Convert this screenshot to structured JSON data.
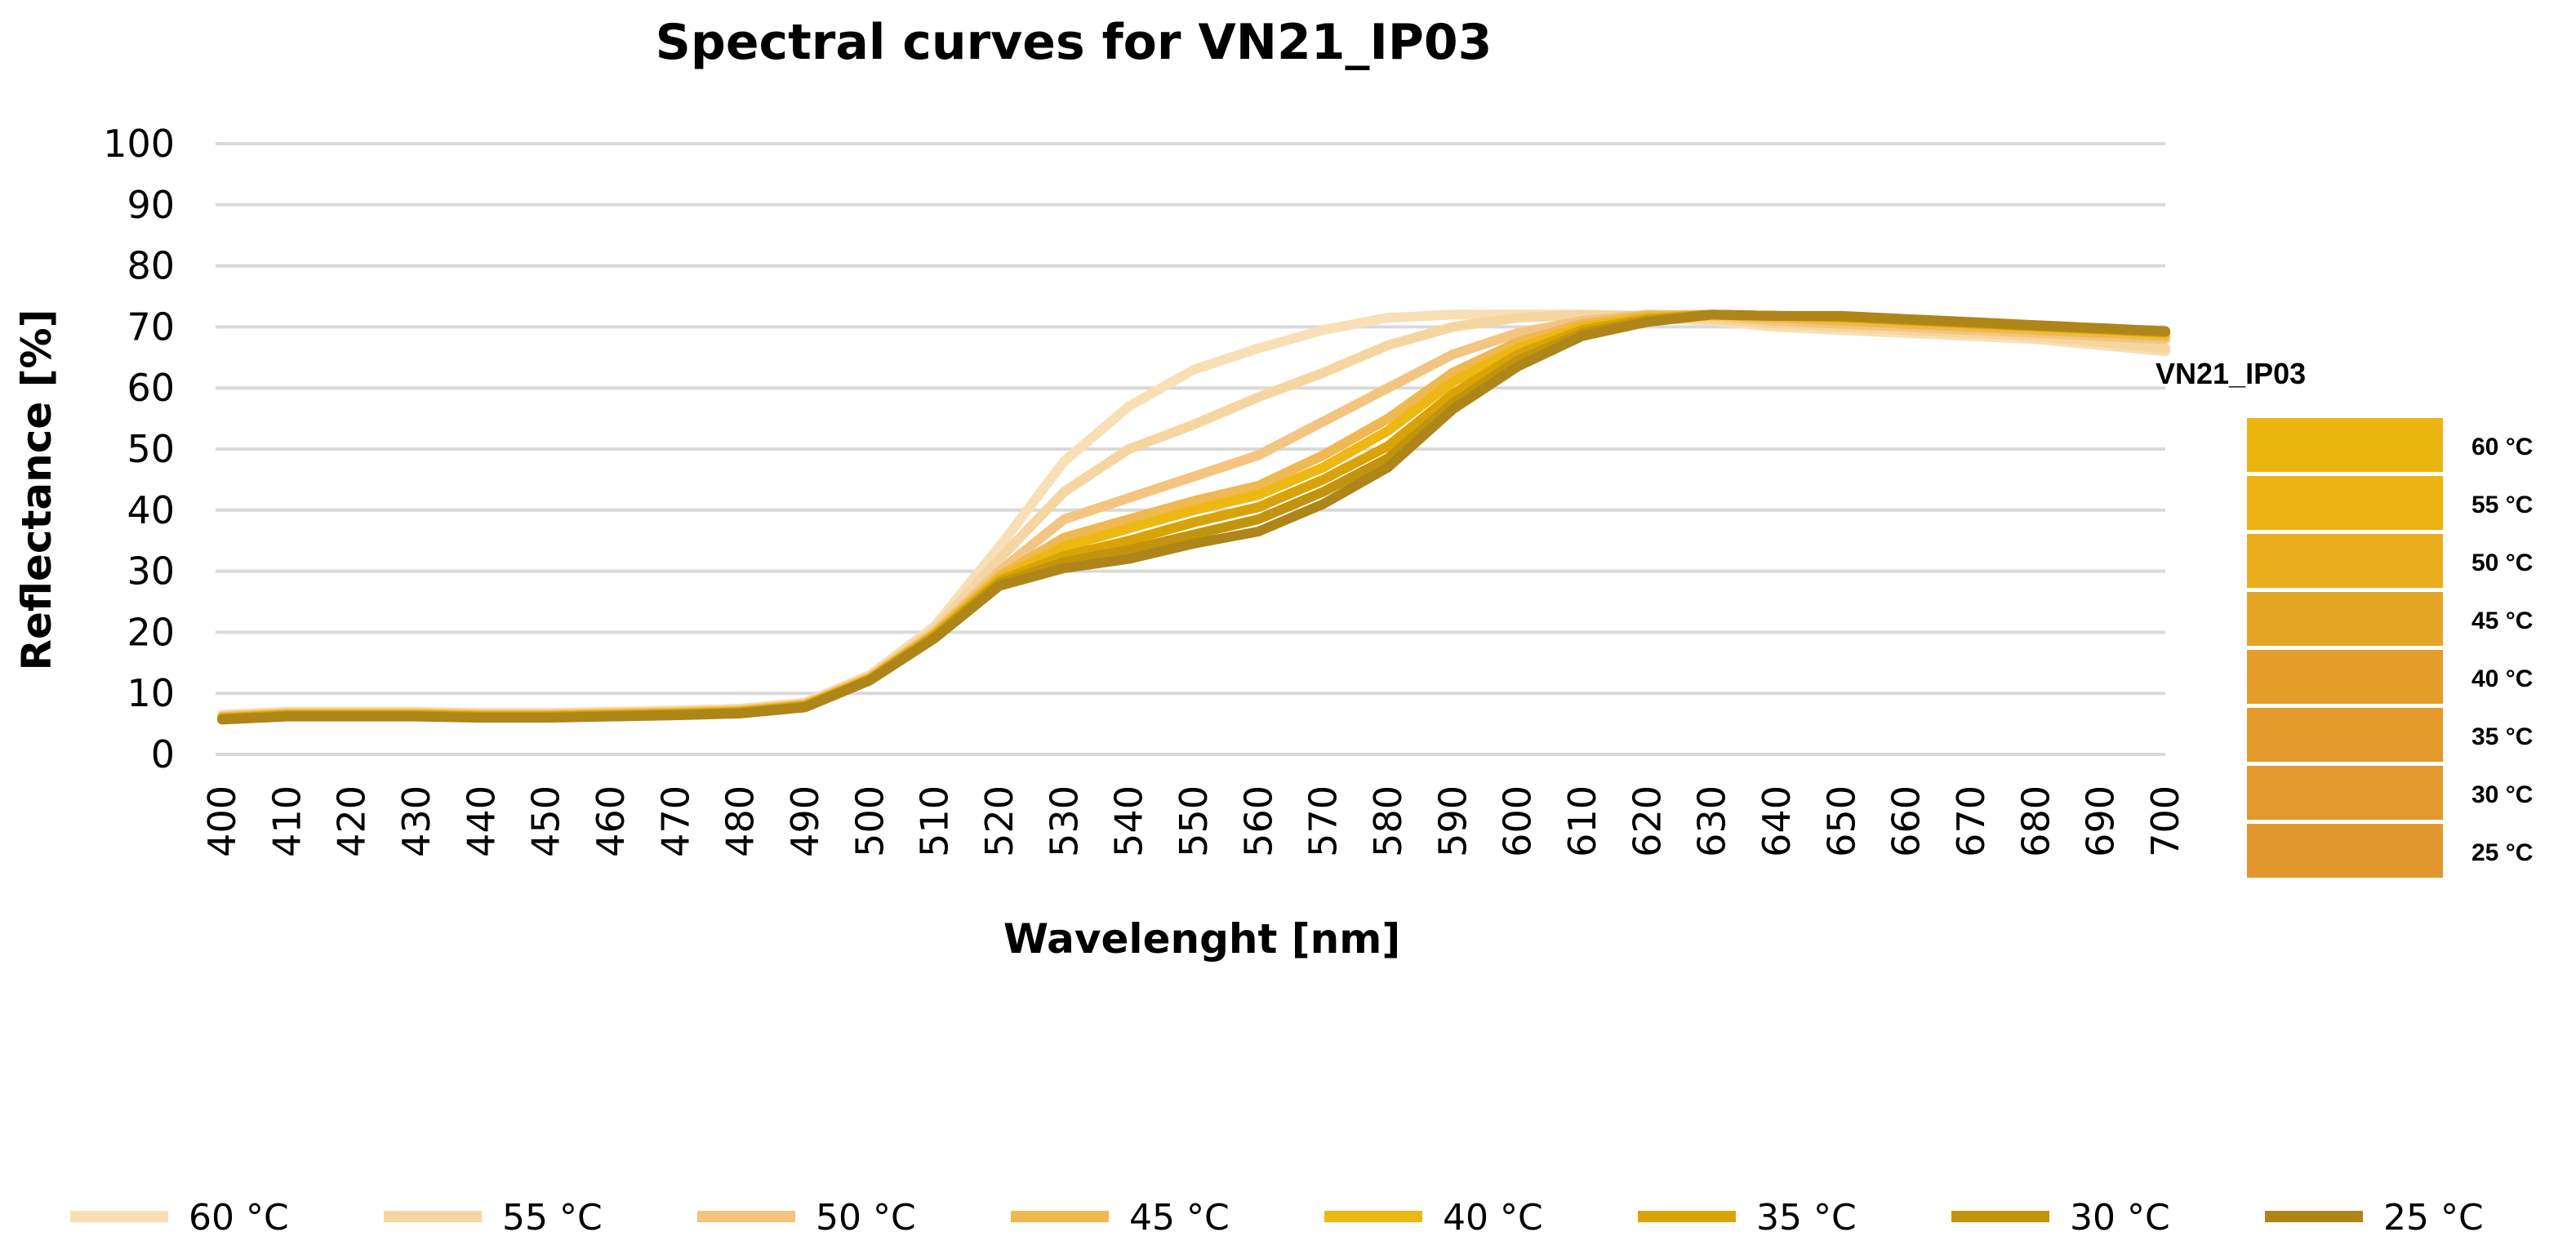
{
  "chart_data": {
    "type": "line",
    "title": "Spectral curves for VN21_IP03",
    "xlabel": "Wavelenght [nm]",
    "ylabel": "Reflectance [%]",
    "ylim": [
      0,
      100
    ],
    "yticks": [
      "0",
      "10",
      "20",
      "30",
      "40",
      "50",
      "60",
      "70",
      "80",
      "90",
      "100"
    ],
    "grid": true,
    "legend_position": "bottom",
    "x": [
      400,
      410,
      420,
      430,
      440,
      450,
      460,
      470,
      480,
      490,
      500,
      510,
      520,
      530,
      540,
      550,
      560,
      570,
      580,
      590,
      600,
      610,
      620,
      630,
      640,
      650,
      660,
      670,
      680,
      690,
      700
    ],
    "x_tick_labels": [
      "400",
      "410",
      "420",
      "430",
      "440",
      "450",
      "460",
      "470",
      "480",
      "490",
      "500",
      "510",
      "520",
      "530",
      "540",
      "550",
      "560",
      "570",
      "580",
      "590",
      "600",
      "610",
      "620",
      "630",
      "640",
      "650",
      "660",
      "670",
      "680",
      "690",
      "700"
    ],
    "series": [
      {
        "name": "60 °C",
        "color": "#f8dfb5",
        "values": [
          6.5,
          7,
          7,
          7,
          6.8,
          6.8,
          7,
          7.2,
          7.5,
          8.5,
          13,
          21,
          34,
          48,
          57,
          63,
          66.5,
          69.5,
          71.5,
          72,
          72,
          72,
          71.5,
          71,
          70,
          69.5,
          69,
          68.5,
          68,
          67,
          66
        ]
      },
      {
        "name": "55 °C",
        "color": "#f6d6a0",
        "values": [
          6.3,
          6.8,
          6.8,
          6.8,
          6.6,
          6.6,
          6.8,
          7,
          7.3,
          8.3,
          12.8,
          20.5,
          32,
          43,
          50,
          54,
          58.5,
          62.5,
          67,
          70,
          71.5,
          72,
          71.8,
          71.3,
          70.5,
          70,
          69.5,
          69,
          68.5,
          67.5,
          66.5
        ]
      },
      {
        "name": "50 °C",
        "color": "#f3c581",
        "values": [
          6.2,
          6.7,
          6.7,
          6.7,
          6.5,
          6.5,
          6.7,
          6.9,
          7.2,
          8.2,
          12.6,
          20,
          30,
          38.5,
          42,
          45.5,
          49,
          54.5,
          60,
          65.5,
          69,
          71,
          72,
          71.8,
          71,
          70.5,
          70,
          69.5,
          69,
          68.5,
          68
        ]
      },
      {
        "name": "45 °C",
        "color": "#efb850",
        "values": [
          6.1,
          6.6,
          6.6,
          6.6,
          6.4,
          6.4,
          6.6,
          6.8,
          7.1,
          8.1,
          12.5,
          19.8,
          29.2,
          35.5,
          38.5,
          41.5,
          44,
          49,
          55,
          62.5,
          67.5,
          70.5,
          71.8,
          72,
          71.5,
          71,
          70.5,
          70,
          69.5,
          69,
          68.5
        ]
      },
      {
        "name": "40 °C",
        "color": "#edb811",
        "values": [
          6,
          6.5,
          6.5,
          6.5,
          6.3,
          6.3,
          6.5,
          6.7,
          7,
          8,
          12.4,
          19.6,
          28.8,
          34,
          37,
          40,
          42.5,
          47,
          53,
          61,
          66.5,
          70,
          71.5,
          72,
          71.8,
          71.5,
          71,
          70.5,
          70,
          69.5,
          69
        ]
      },
      {
        "name": "35 °C",
        "color": "#d9a308",
        "values": [
          5.9,
          6.4,
          6.4,
          6.4,
          6.2,
          6.2,
          6.4,
          6.6,
          6.9,
          7.9,
          12.3,
          19.4,
          28.4,
          32.5,
          35,
          38,
          40.5,
          45,
          50.5,
          59,
          65.5,
          69.5,
          71.3,
          72,
          71.8,
          71.6,
          71.1,
          70.6,
          70.1,
          69.6,
          69.1
        ]
      },
      {
        "name": "30 °C",
        "color": "#c2940e",
        "values": [
          5.8,
          6.3,
          6.3,
          6.3,
          6.1,
          6.1,
          6.3,
          6.5,
          6.8,
          7.8,
          12.2,
          19.2,
          28,
          31.5,
          33.5,
          36,
          38.5,
          43,
          48.5,
          57.5,
          64.5,
          69,
          71,
          72,
          71.8,
          71.7,
          71.2,
          70.7,
          70.2,
          69.7,
          69.2
        ]
      },
      {
        "name": "25 °C",
        "color": "#ae8518",
        "values": [
          5.7,
          6.2,
          6.2,
          6.2,
          6,
          6,
          6.2,
          6.4,
          6.7,
          7.7,
          12.1,
          19,
          27.6,
          30.5,
          32,
          34.5,
          36.5,
          41,
          47,
          56.5,
          63.5,
          68.5,
          70.8,
          72,
          71.8,
          71.8,
          71.3,
          70.8,
          70.3,
          69.8,
          69.3
        ]
      }
    ],
    "side_legend": {
      "title": "VN21_IP03",
      "items": [
        {
          "label": "60 °C",
          "color": "#ecb50f"
        },
        {
          "label": "55 °C",
          "color": "#ebb211"
        },
        {
          "label": "50 °C",
          "color": "#e9ad1c"
        },
        {
          "label": "45 °C",
          "color": "#e6a426"
        },
        {
          "label": "40 °C",
          "color": "#e49e29"
        },
        {
          "label": "35 °C",
          "color": "#e39a2b"
        },
        {
          "label": "30 °C",
          "color": "#e2982d"
        },
        {
          "label": "25 °C",
          "color": "#e1972e"
        }
      ]
    }
  }
}
